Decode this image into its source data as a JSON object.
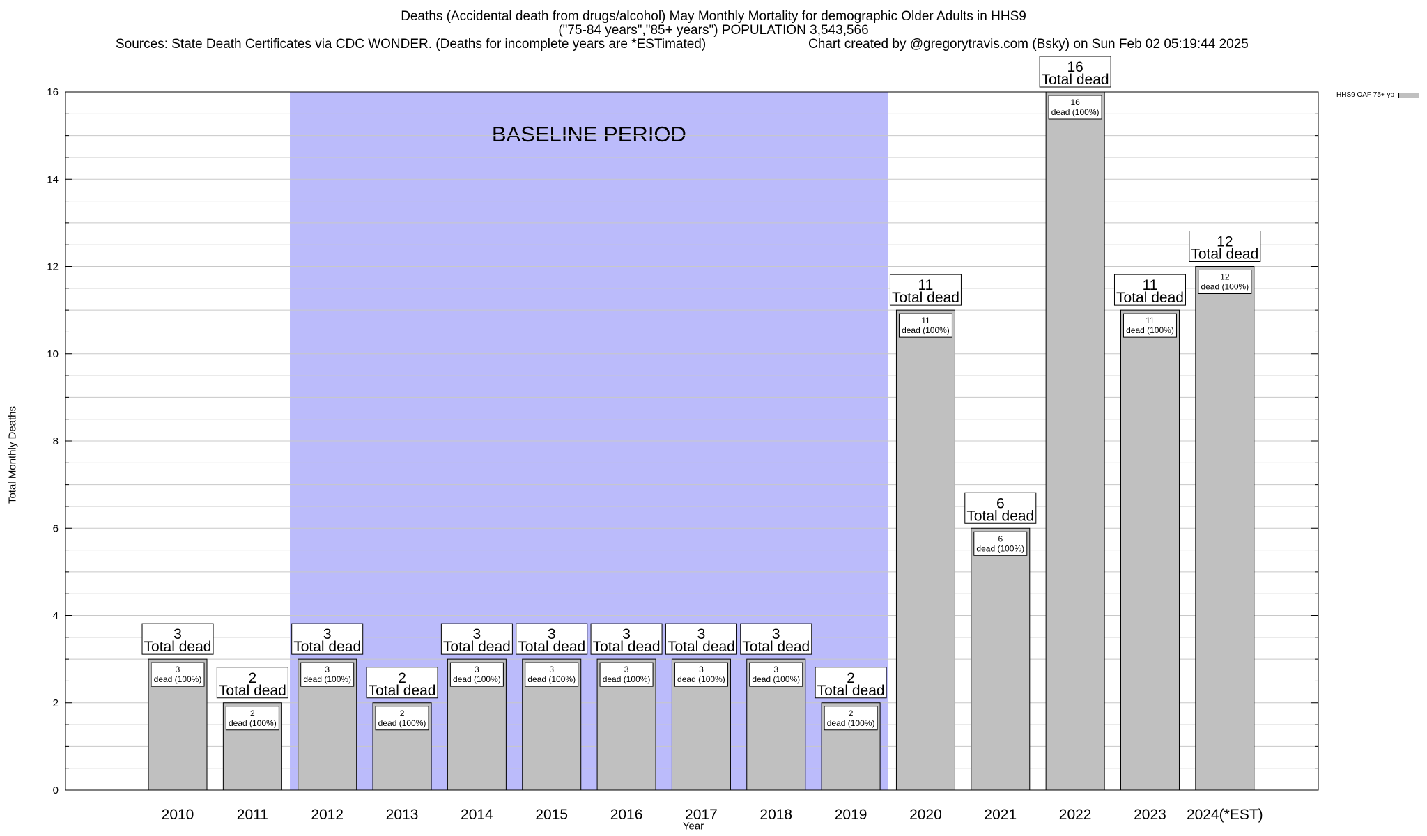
{
  "title_line1": "Deaths (Accidental death from drugs/alcohol) May Monthly Mortality for demographic Older Adults in HHS9",
  "title_line2": "(\"75-84 years\",\"85+ years\") POPULATION 3,543,566",
  "sources": "Sources: State Death Certificates via CDC WONDER. (Deaths for incomplete years are *ESTimated)",
  "credit": "Chart created by @gregorytravis.com (Bsky) on Sun Feb 02 05:19:44 2025",
  "colors": {
    "bar": "#c0c0c0",
    "baseline_band": "#bbbbfb",
    "grid": "#c8c8c8"
  },
  "chart_data": {
    "type": "bar",
    "title": "Deaths (Accidental death from drugs/alcohol) May Monthly Mortality for demographic Older Adults in HHS9",
    "subtitle": "(\"75-84 years\",\"85+ years\") POPULATION 3,543,566",
    "xlabel": "Year",
    "ylabel": "Total Monthly Deaths",
    "ylim": [
      0,
      16
    ],
    "yticks": [
      0,
      2,
      4,
      6,
      8,
      10,
      12,
      14,
      16
    ],
    "grid": true,
    "categories": [
      "2010",
      "2011",
      "2012",
      "2013",
      "2014",
      "2015",
      "2016",
      "2017",
      "2018",
      "2019",
      "2020",
      "2021",
      "2022",
      "2023",
      "2024(*EST)"
    ],
    "series": [
      {
        "name": "HHS9 OAF 75+ yo",
        "values": [
          3,
          2,
          3,
          2,
          3,
          3,
          3,
          3,
          3,
          2,
          11,
          6,
          16,
          11,
          12
        ]
      }
    ],
    "annotations": {
      "band_label": "BASELINE PERIOD",
      "band_range": [
        "2012",
        "2019"
      ],
      "total_label": "Total dead",
      "inner_label": "dead (100%)"
    },
    "legend_position": "top-right"
  }
}
